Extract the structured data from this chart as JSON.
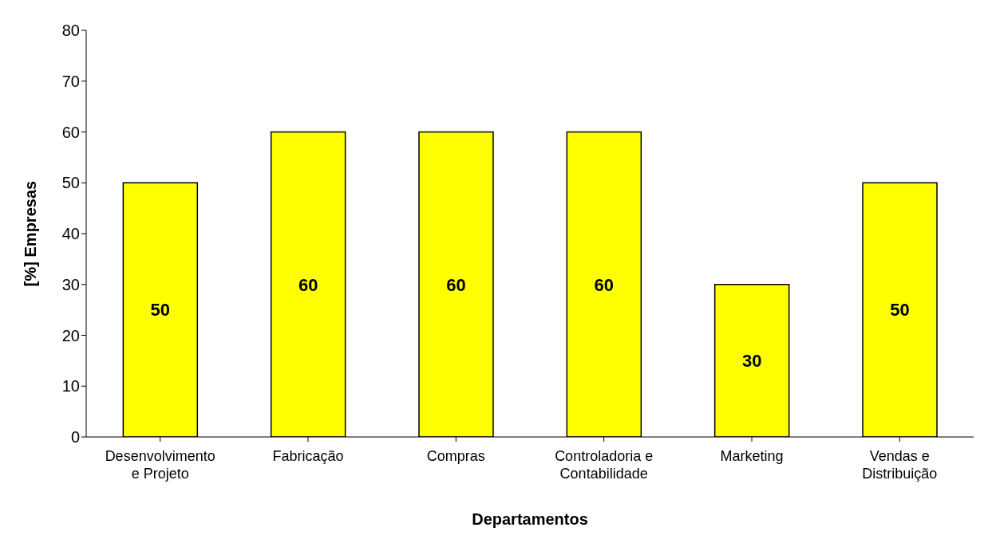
{
  "chart_data": {
    "type": "bar",
    "xlabel": "Departamentos",
    "ylabel": "[%] Empresas",
    "categories": [
      "Desenvolvimento e Projeto",
      "Fabricação",
      "Compras",
      "Controladoria e Contabilidade",
      "Marketing",
      "Vendas e Distribuição"
    ],
    "values": [
      50,
      60,
      60,
      60,
      30,
      50
    ],
    "color": "#ffff00",
    "ylim": [
      0,
      80
    ],
    "yticks": [
      0,
      10,
      20,
      30,
      40,
      50,
      60,
      70,
      80
    ],
    "grid": false,
    "data_labels": true
  }
}
